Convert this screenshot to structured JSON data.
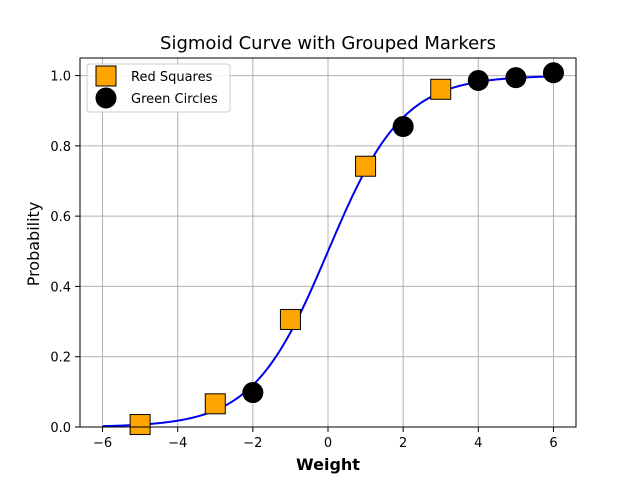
{
  "chart_data": {
    "type": "scatter",
    "title": "Sigmoid Curve with Grouped Markers",
    "xlabel": "Weight",
    "ylabel": "Probability",
    "xlim": [
      -6.6,
      6.6
    ],
    "ylim": [
      0,
      1.05
    ],
    "xticks": [
      -6,
      -4,
      -2,
      0,
      2,
      4,
      6
    ],
    "xtick_labels": [
      "−6",
      "−4",
      "−2",
      "0",
      "2",
      "4",
      "6"
    ],
    "yticks": [
      0.0,
      0.2,
      0.4,
      0.6,
      0.8,
      1.0
    ],
    "ytick_labels": [
      "0.0",
      "0.2",
      "0.4",
      "0.6",
      "0.8",
      "1.0"
    ],
    "grid": true,
    "legend_position": "top-left",
    "curve": {
      "function": "sigmoid",
      "x_range": [
        -6,
        6
      ],
      "color": "#0000ee"
    },
    "series": [
      {
        "name": "Red Squares",
        "marker": "square",
        "color": "#ffa500",
        "x": [
          -5,
          -3,
          -1,
          1,
          3
        ],
        "y": [
          0.007,
          0.066,
          0.306,
          0.742,
          0.961
        ]
      },
      {
        "name": "Green Circles",
        "marker": "circle",
        "color": "#000000",
        "x": [
          -2,
          2,
          4,
          5,
          6
        ],
        "y": [
          0.098,
          0.855,
          0.986,
          0.994,
          1.008
        ]
      }
    ]
  }
}
